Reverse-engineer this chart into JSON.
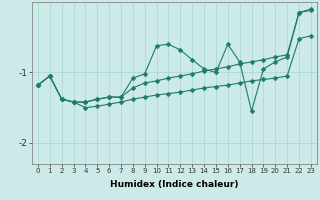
{
  "xlabel": "Humidex (Indice chaleur)",
  "background_color": "#cceae7",
  "grid_color": "#aad4d0",
  "line_color": "#1e7b6e",
  "x_values": [
    0,
    1,
    2,
    3,
    4,
    5,
    6,
    7,
    8,
    9,
    10,
    11,
    12,
    13,
    14,
    15,
    16,
    17,
    18,
    19,
    20,
    21,
    22,
    23
  ],
  "line1": [
    -1.18,
    -1.05,
    -1.38,
    -1.42,
    -1.42,
    -1.38,
    -1.35,
    -1.35,
    -1.08,
    -1.02,
    -0.62,
    -0.6,
    -0.68,
    -0.82,
    -0.95,
    -1.0,
    -0.6,
    -0.85,
    -1.55,
    -0.95,
    -0.85,
    -0.78,
    -0.15,
    -0.1
  ],
  "line2": [
    -1.18,
    -1.05,
    -1.38,
    -1.42,
    -1.42,
    -1.38,
    -1.35,
    -1.35,
    -1.22,
    -1.15,
    -1.12,
    -1.08,
    -1.05,
    -1.02,
    -0.98,
    -0.95,
    -0.92,
    -0.88,
    -0.85,
    -0.82,
    -0.78,
    -0.75,
    -0.15,
    -0.12
  ],
  "line3": [
    -1.18,
    -1.05,
    -1.38,
    -1.42,
    -1.5,
    -1.48,
    -1.45,
    -1.42,
    -1.38,
    -1.35,
    -1.32,
    -1.3,
    -1.28,
    -1.25,
    -1.22,
    -1.2,
    -1.18,
    -1.15,
    -1.12,
    -1.1,
    -1.08,
    -1.05,
    -0.52,
    -0.48
  ],
  "ylim": [
    -2.3,
    -0.0
  ],
  "xlim": [
    -0.5,
    23.5
  ],
  "yticks": [
    -2,
    -1
  ],
  "xticks": [
    0,
    1,
    2,
    3,
    4,
    5,
    6,
    7,
    8,
    9,
    10,
    11,
    12,
    13,
    14,
    15,
    16,
    17,
    18,
    19,
    20,
    21,
    22,
    23
  ],
  "figwidth": 3.2,
  "figheight": 2.0,
  "dpi": 100
}
